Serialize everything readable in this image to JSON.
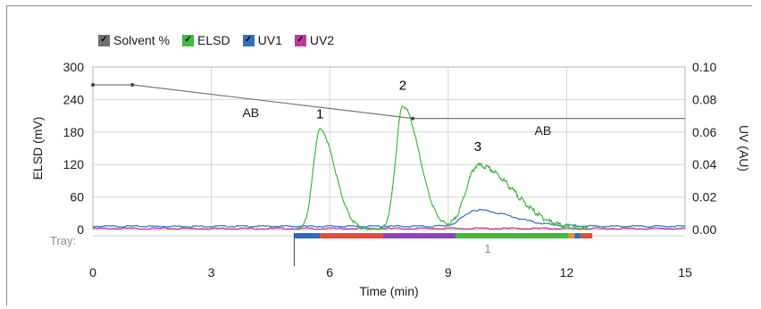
{
  "legend": {
    "items": [
      {
        "label": "Solvent %",
        "color": "#707070",
        "check": "✓"
      },
      {
        "label": "ELSD",
        "color": "#3dbb3d",
        "check": "✓"
      },
      {
        "label": "UV1",
        "color": "#2e6fc8",
        "check": "✓"
      },
      {
        "label": "UV2",
        "color": "#c0389c",
        "check": "✓"
      }
    ]
  },
  "chart_data": {
    "type": "line",
    "xlabel": "Time (min)",
    "ylabel_left": "ELSD (mV)",
    "ylabel_right": "UV (AU)",
    "xlim": [
      0,
      15
    ],
    "ylim_left": [
      0,
      300
    ],
    "ylim_right": [
      0,
      0.1
    ],
    "x_ticks": [
      0,
      3,
      6,
      9,
      12,
      15
    ],
    "y_left_ticks": [
      0,
      60,
      120,
      180,
      240,
      300
    ],
    "y_right_ticks": [
      "0.00",
      "0.02",
      "0.04",
      "0.06",
      "0.08",
      "0.10"
    ],
    "grid": true,
    "solvent_line": {
      "points": [
        [
          0,
          267
        ],
        [
          1.0,
          267
        ],
        [
          8.1,
          205
        ],
        [
          15,
          205
        ]
      ],
      "labels": [
        {
          "text": "AB",
          "x": 4.0,
          "y": 208
        },
        {
          "text": "AB",
          "x": 11.4,
          "y": 175
        }
      ]
    },
    "elsd": {
      "baseline": 0,
      "peaks": [
        {
          "center": 5.75,
          "height": 185,
          "width_left": 0.25,
          "width_right": 0.38
        },
        {
          "center": 7.85,
          "height": 228,
          "width_left": 0.26,
          "width_right": 0.42
        },
        {
          "center": 9.75,
          "height": 118,
          "width_left": 0.45,
          "width_right": 0.9
        }
      ],
      "start": 5.1,
      "end": 12.6
    },
    "uv1": {
      "peaks": [
        {
          "center": 9.7,
          "height": 30,
          "width_left": 0.45,
          "width_right": 0.9
        }
      ],
      "baseline": 6
    },
    "uv2": {
      "baseline": 2
    },
    "peak_labels": [
      {
        "text": "1",
        "x": 5.75,
        "y": 205
      },
      {
        "text": "2",
        "x": 7.85,
        "y": 258
      },
      {
        "text": "3",
        "x": 9.75,
        "y": 145
      }
    ],
    "tray": {
      "label": "Tray:",
      "number": "1",
      "segments": [
        {
          "start": 5.1,
          "end": 5.75,
          "color": "#3068c4"
        },
        {
          "start": 5.75,
          "end": 7.35,
          "color": "#e8483b"
        },
        {
          "start": 7.35,
          "end": 9.2,
          "color": "#8b45b6"
        },
        {
          "start": 9.2,
          "end": 12.05,
          "color": "#3dbb3d"
        },
        {
          "start": 12.05,
          "end": 12.2,
          "color": "#f08c2a"
        },
        {
          "start": 12.2,
          "end": 12.35,
          "color": "#3068c4"
        },
        {
          "start": 12.35,
          "end": 12.65,
          "color": "#e8483b"
        }
      ]
    }
  }
}
